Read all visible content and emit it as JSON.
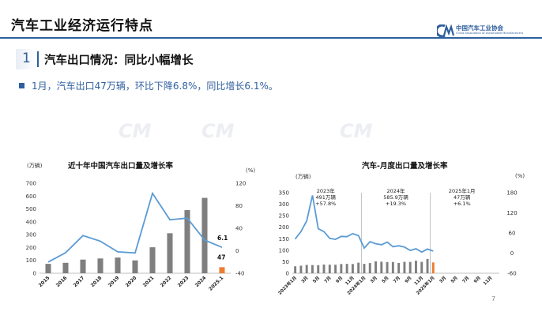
{
  "header": {
    "title": "汽车工业经济运行特点",
    "logo_cn": "中国汽车工业协会",
    "logo_en": "China Association of Automobile Manufacturers"
  },
  "section": {
    "number": "1",
    "title": "汽车出口情况：同比小幅增长"
  },
  "bullet": "1月，汽车出口47万辆，环比下降6.8%，同比增长6.1%。",
  "watermark_text": "中国汽车工业协会",
  "page_number": "7",
  "colors": {
    "brand_blue": "#2f5f9e",
    "bar_gray": "#7f7f7f",
    "bar_highlight": "#ed7d31",
    "line_blue": "#5b9bd5"
  },
  "chart_data": [
    {
      "type": "bar",
      "title": "近十年中国汽车出口量及增长率",
      "left_unit": "(万辆)",
      "right_unit": "(%)",
      "categories": [
        "2015",
        "2016",
        "2017",
        "2018",
        "2019",
        "2020",
        "2021",
        "2022",
        "2023",
        "2024",
        "2025.1"
      ],
      "series": [
        {
          "values": [
            73,
            81,
            106,
            115,
            122,
            100,
            202,
            311,
            491,
            586,
            47
          ],
          "axis": "left",
          "type": "bar"
        },
        {
          "values": [
            -20,
            -3.5,
            27,
            17,
            -2,
            -4,
            102,
            55,
            58,
            19,
            6.1
          ],
          "axis": "right",
          "type": "line"
        }
      ],
      "ylim_left": [
        0,
        700
      ],
      "yticks_left": [
        "0",
        "100",
        "200",
        "300",
        "400",
        "500",
        "600",
        "700"
      ],
      "ylim_right": [
        -40,
        120
      ],
      "yticks_right": [
        "-40",
        "0",
        "40",
        "80",
        "120"
      ],
      "data_labels": [
        {
          "text": "6.1"
        },
        {
          "text": "47"
        }
      ]
    },
    {
      "type": "bar",
      "title": "汽车-月度出口量及增长率",
      "left_unit": "(万辆)",
      "right_unit": "(%)",
      "x_ticks": [
        "2023年1月",
        "3月",
        "5月",
        "7月",
        "9月",
        "11月",
        "2024年1月",
        "3月",
        "5月",
        "7月",
        "9月",
        "11月",
        "2025年1月",
        "3月",
        "5月",
        "7月",
        "9月",
        "11月"
      ],
      "bar_values": [
        30.1,
        32.9,
        36.2,
        35.5,
        35.2,
        37.8,
        37.1,
        36.9,
        40.1,
        40.7,
        39.9,
        45.9,
        40.8,
        44.3,
        51.5,
        50.1,
        48.6,
        48.8,
        44.5,
        49.5,
        49.2,
        54.6,
        49.4,
        62.1,
        47.0
      ],
      "line_values": [
        42,
        64,
        96,
        172,
        73,
        64,
        44,
        41,
        50,
        49,
        58,
        52,
        15,
        34,
        28,
        25,
        33,
        19,
        22,
        18,
        8,
        13,
        3,
        12,
        6.1
      ],
      "ylim_left": [
        0,
        350
      ],
      "yticks_left": [
        "0",
        "50",
        "100",
        "150",
        "200",
        "250",
        "300",
        "350"
      ],
      "ylim_right": [
        -60,
        180
      ],
      "yticks_right": [
        "-60",
        "0",
        "60",
        "120",
        "180"
      ],
      "annotations": [
        {
          "lines": [
            "2023年",
            "491万辆",
            "+57.8%"
          ]
        },
        {
          "lines": [
            "2024年",
            "585.9万辆",
            "+19.3%"
          ]
        },
        {
          "lines": [
            "2025年1月",
            "47万辆",
            "+6.1%"
          ]
        }
      ]
    }
  ]
}
